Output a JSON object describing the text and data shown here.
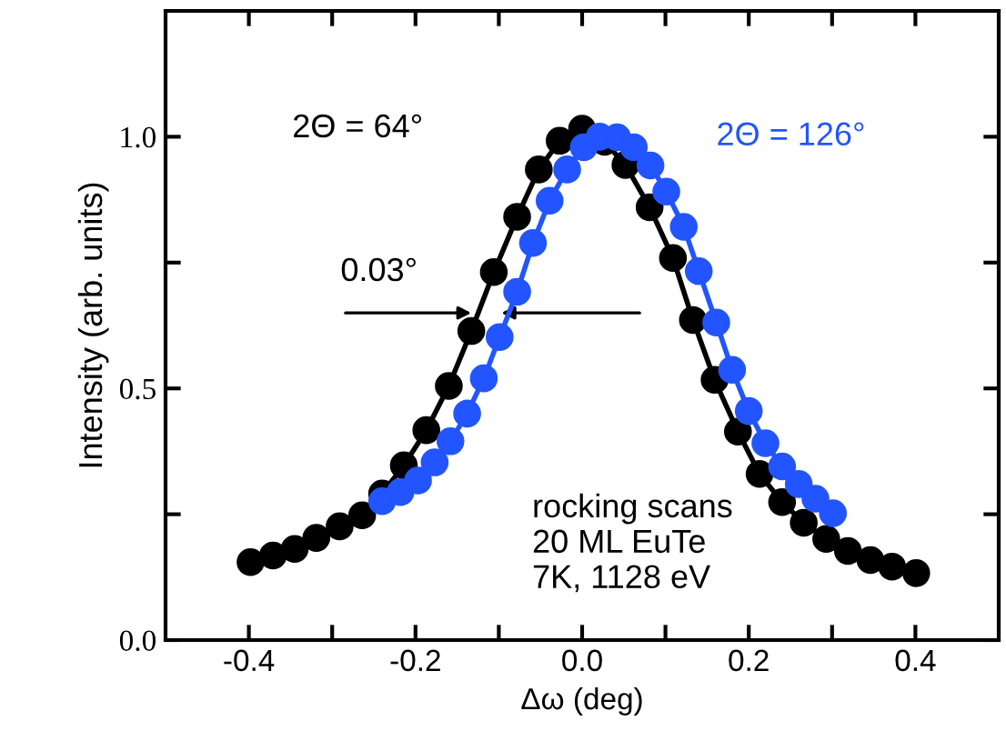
{
  "chart_data": {
    "type": "line",
    "xlabel": "Δω (deg)",
    "ylabel": "Intensity (arb. units)",
    "xlim": [
      -0.5,
      0.5
    ],
    "ylim": [
      0,
      1.25
    ],
    "xticks": [
      -0.4,
      {
        "value": -0.3,
        "label": null
      },
      -0.2,
      {
        "value": -0.1,
        "label": null
      },
      {
        "value": 0.0,
        "label": "0.0"
      },
      {
        "value": 0.1,
        "label": null
      },
      0.2,
      {
        "value": 0.3,
        "label": null
      },
      0.4
    ],
    "yticks": [
      {
        "value": 0.0,
        "label": "0.0"
      },
      {
        "value": 0.25,
        "label": null
      },
      0.5,
      {
        "value": 0.75,
        "label": null
      },
      {
        "value": 1.0,
        "label": "1.0"
      }
    ],
    "grid": false,
    "legend": false,
    "marker": "circle",
    "line_style": "solid",
    "series": [
      {
        "name": "2Θ = 64°",
        "color": "#000000",
        "x": [
          -0.398,
          -0.371,
          -0.345,
          -0.319,
          -0.291,
          -0.264,
          -0.24,
          -0.214,
          -0.187,
          -0.16,
          -0.133,
          -0.106,
          -0.078,
          -0.052,
          -0.027,
          0.0,
          0.027,
          0.052,
          0.081,
          0.109,
          0.133,
          0.159,
          0.187,
          0.213,
          0.24,
          0.266,
          0.293,
          0.319,
          0.346,
          0.372,
          0.401
        ],
        "values": [
          0.155,
          0.168,
          0.181,
          0.203,
          0.226,
          0.248,
          0.291,
          0.347,
          0.417,
          0.505,
          0.614,
          0.731,
          0.841,
          0.935,
          0.992,
          1.016,
          0.99,
          0.944,
          0.86,
          0.759,
          0.636,
          0.517,
          0.414,
          0.33,
          0.274,
          0.233,
          0.201,
          0.177,
          0.159,
          0.146,
          0.133
        ]
      },
      {
        "name": "2Θ = 126°",
        "color": "#2255ff",
        "x": [
          -0.24,
          -0.218,
          -0.197,
          -0.177,
          -0.158,
          -0.138,
          -0.118,
          -0.099,
          -0.078,
          -0.059,
          -0.039,
          -0.018,
          0.002,
          0.021,
          0.042,
          0.062,
          0.082,
          0.101,
          0.122,
          0.14,
          0.161,
          0.18,
          0.2,
          0.22,
          0.24,
          0.26,
          0.28,
          0.301
        ],
        "values": [
          0.276,
          0.294,
          0.317,
          0.353,
          0.395,
          0.45,
          0.52,
          0.602,
          0.692,
          0.789,
          0.873,
          0.935,
          0.979,
          1.0,
          0.999,
          0.979,
          0.943,
          0.891,
          0.821,
          0.733,
          0.631,
          0.537,
          0.455,
          0.391,
          0.345,
          0.31,
          0.281,
          0.252
        ]
      }
    ],
    "annotations": [
      {
        "text": "0.03°",
        "x": -0.115,
        "y": 0.65
      },
      "rocking scans\n20 ML EuTe\n7K, 1128 eV"
    ]
  }
}
